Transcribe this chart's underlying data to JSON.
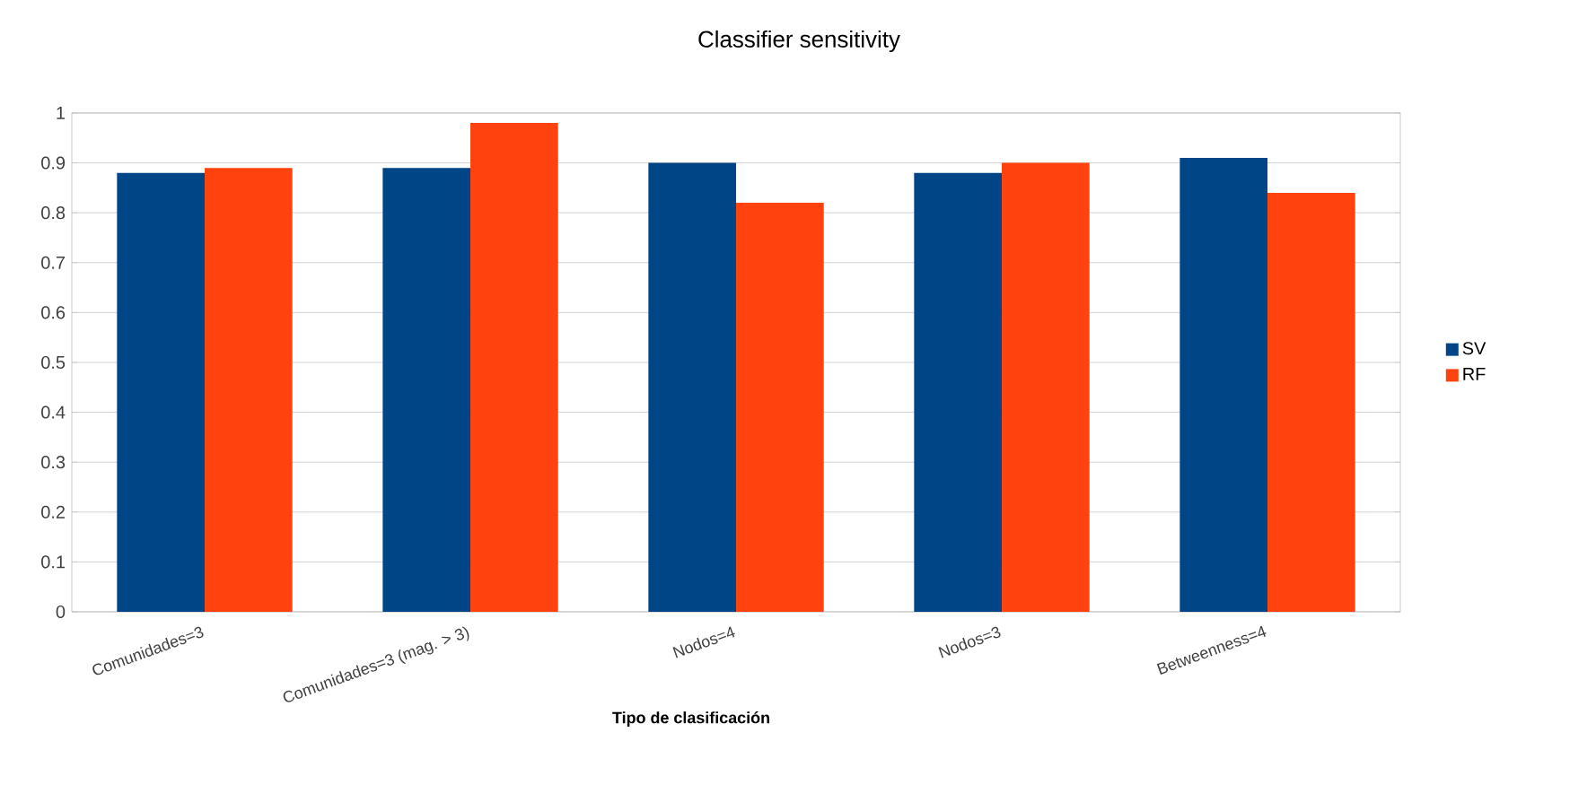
{
  "chart_data": {
    "type": "bar",
    "title": "Classifier sensitivity",
    "xlabel": "Tipo de clasificación",
    "categories": [
      "Comunidades=3",
      "Comunidades=3 (mag. > 3)",
      "Nodos=4",
      "Nodos=3",
      "Betweenness=4"
    ],
    "series": [
      {
        "name": "SV",
        "color": "#004586",
        "values": [
          0.88,
          0.89,
          0.9,
          0.88,
          0.91
        ]
      },
      {
        "name": "RF",
        "color": "#ff420e",
        "values": [
          0.89,
          0.98,
          0.82,
          0.9,
          0.84
        ]
      }
    ],
    "ylim": [
      0,
      1
    ],
    "yticks": [
      0,
      0.1,
      0.2,
      0.3,
      0.4,
      0.5,
      0.6,
      0.7,
      0.8,
      0.9,
      1
    ],
    "grid": "y",
    "legend": "right"
  }
}
